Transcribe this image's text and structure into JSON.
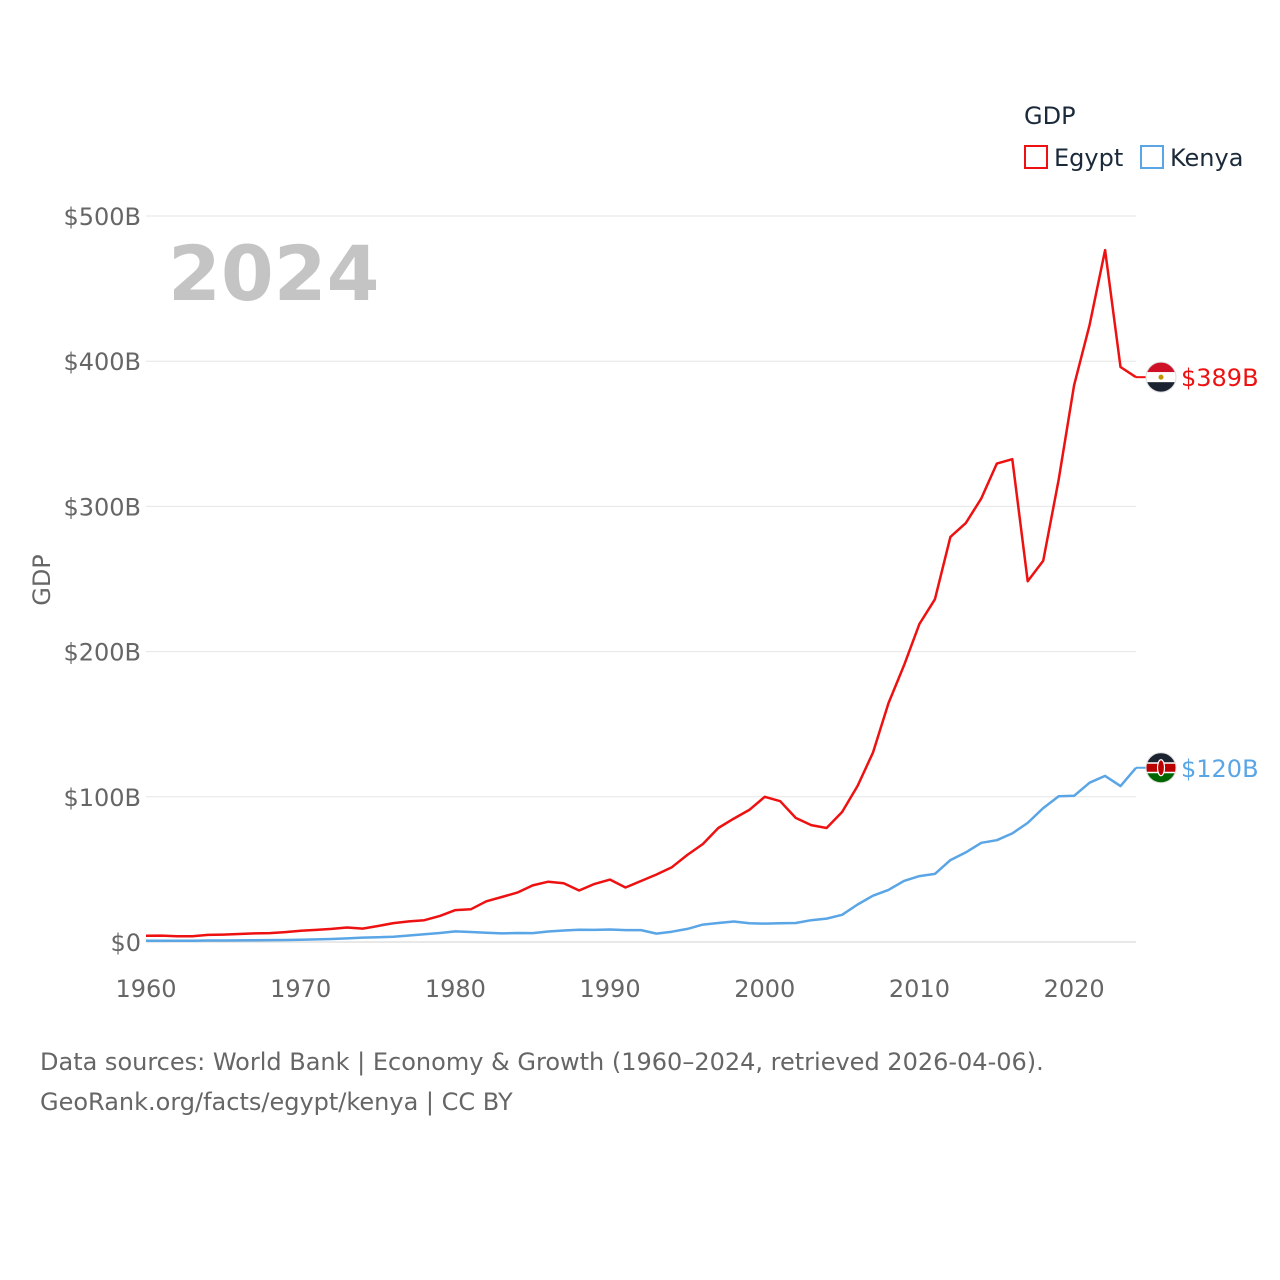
{
  "chart_data": {
    "type": "line",
    "title": "",
    "year_label": "2024",
    "xlabel": "",
    "ylabel": "GDP",
    "ylim": [
      0,
      500
    ],
    "xlim": [
      1960,
      2024
    ],
    "y_ticks": [
      {
        "value": 0,
        "label": "$0"
      },
      {
        "value": 100,
        "label": "$100B"
      },
      {
        "value": 200,
        "label": "$200B"
      },
      {
        "value": 300,
        "label": "$300B"
      },
      {
        "value": 400,
        "label": "$400B"
      },
      {
        "value": 500,
        "label": "$500B"
      }
    ],
    "x_ticks": [
      {
        "value": 1960,
        "label": "1960"
      },
      {
        "value": 1970,
        "label": "1970"
      },
      {
        "value": 1980,
        "label": "1980"
      },
      {
        "value": 1990,
        "label": "1990"
      },
      {
        "value": 2000,
        "label": "2000"
      },
      {
        "value": 2010,
        "label": "2010"
      },
      {
        "value": 2020,
        "label": "2020"
      }
    ],
    "legend": {
      "title": "GDP",
      "position": "top-right"
    },
    "grid": true,
    "units": "billions USD",
    "series": [
      {
        "name": "Egypt",
        "color": "#ee1111",
        "end_label": "$389B",
        "flag": "egypt-flag",
        "values": [
          [
            1960,
            4.3
          ],
          [
            1961,
            4.4
          ],
          [
            1962,
            4.0
          ],
          [
            1963,
            4.0
          ],
          [
            1964,
            4.9
          ],
          [
            1965,
            5.1
          ],
          [
            1966,
            5.5
          ],
          [
            1967,
            5.9
          ],
          [
            1968,
            6.1
          ],
          [
            1969,
            6.8
          ],
          [
            1970,
            7.7
          ],
          [
            1971,
            8.3
          ],
          [
            1972,
            9.0
          ],
          [
            1973,
            10.0
          ],
          [
            1974,
            9.2
          ],
          [
            1975,
            11.0
          ],
          [
            1976,
            13.0
          ],
          [
            1977,
            14.2
          ],
          [
            1978,
            15.0
          ],
          [
            1979,
            18.0
          ],
          [
            1980,
            22.0
          ],
          [
            1981,
            22.5
          ],
          [
            1982,
            28.0
          ],
          [
            1983,
            31.0
          ],
          [
            1984,
            34.0
          ],
          [
            1985,
            39.0
          ],
          [
            1986,
            41.5
          ],
          [
            1987,
            40.5
          ],
          [
            1988,
            35.5
          ],
          [
            1989,
            40.0
          ],
          [
            1990,
            43.0
          ],
          [
            1991,
            37.5
          ],
          [
            1992,
            42.0
          ],
          [
            1993,
            46.5
          ],
          [
            1994,
            51.5
          ],
          [
            1995,
            60.0
          ],
          [
            1996,
            67.5
          ],
          [
            1997,
            78.5
          ],
          [
            1998,
            85.0
          ],
          [
            1999,
            91.0
          ],
          [
            2000,
            100.0
          ],
          [
            2001,
            97.0
          ],
          [
            2002,
            85.5
          ],
          [
            2003,
            80.5
          ],
          [
            2004,
            78.5
          ],
          [
            2005,
            89.5
          ],
          [
            2006,
            107.5
          ],
          [
            2007,
            130.5
          ],
          [
            2008,
            164.5
          ],
          [
            2009,
            190.5
          ],
          [
            2010,
            219.0
          ],
          [
            2011,
            236.0
          ],
          [
            2012,
            279.0
          ],
          [
            2013,
            288.5
          ],
          [
            2014,
            305.5
          ],
          [
            2015,
            329.5
          ],
          [
            2016,
            332.5
          ],
          [
            2017,
            248.5
          ],
          [
            2018,
            262.5
          ],
          [
            2019,
            318.5
          ],
          [
            2020,
            383.5
          ],
          [
            2021,
            425.0
          ],
          [
            2022,
            476.5
          ],
          [
            2023,
            396.0
          ],
          [
            2024,
            389.0
          ]
        ]
      },
      {
        "name": "Kenya",
        "color": "#5aa5e6",
        "end_label": "$120B",
        "flag": "kenya-flag",
        "values": [
          [
            1960,
            0.8
          ],
          [
            1961,
            0.8
          ],
          [
            1962,
            0.9
          ],
          [
            1963,
            0.9
          ],
          [
            1964,
            1.0
          ],
          [
            1965,
            1.0
          ],
          [
            1966,
            1.1
          ],
          [
            1967,
            1.2
          ],
          [
            1968,
            1.3
          ],
          [
            1969,
            1.4
          ],
          [
            1970,
            1.6
          ],
          [
            1971,
            1.8
          ],
          [
            1972,
            2.1
          ],
          [
            1973,
            2.5
          ],
          [
            1974,
            3.0
          ],
          [
            1975,
            3.3
          ],
          [
            1976,
            3.6
          ],
          [
            1977,
            4.5
          ],
          [
            1978,
            5.3
          ],
          [
            1979,
            6.2
          ],
          [
            1980,
            7.3
          ],
          [
            1981,
            6.9
          ],
          [
            1982,
            6.4
          ],
          [
            1983,
            5.9
          ],
          [
            1984,
            6.2
          ],
          [
            1985,
            6.1
          ],
          [
            1986,
            7.2
          ],
          [
            1987,
            7.9
          ],
          [
            1988,
            8.4
          ],
          [
            1989,
            8.3
          ],
          [
            1990,
            8.6
          ],
          [
            1991,
            8.2
          ],
          [
            1992,
            8.2
          ],
          [
            1993,
            5.8
          ],
          [
            1994,
            7.1
          ],
          [
            1995,
            9.0
          ],
          [
            1996,
            12.0
          ],
          [
            1997,
            13.1
          ],
          [
            1998,
            14.1
          ],
          [
            1999,
            12.9
          ],
          [
            2000,
            12.7
          ],
          [
            2001,
            12.9
          ],
          [
            2002,
            13.1
          ],
          [
            2003,
            15.0
          ],
          [
            2004,
            16.1
          ],
          [
            2005,
            18.7
          ],
          [
            2006,
            25.8
          ],
          [
            2007,
            31.9
          ],
          [
            2008,
            35.9
          ],
          [
            2009,
            42.1
          ],
          [
            2010,
            45.4
          ],
          [
            2011,
            46.9
          ],
          [
            2012,
            56.4
          ],
          [
            2013,
            61.7
          ],
          [
            2014,
            68.3
          ],
          [
            2015,
            70.1
          ],
          [
            2016,
            74.8
          ],
          [
            2017,
            82.0
          ],
          [
            2018,
            92.2
          ],
          [
            2019,
            100.4
          ],
          [
            2020,
            100.7
          ],
          [
            2021,
            109.7
          ],
          [
            2022,
            114.4
          ],
          [
            2023,
            107.4
          ],
          [
            2024,
            120.0
          ]
        ]
      }
    ]
  },
  "footer": {
    "line1": "Data sources: World Bank | Economy & Growth (1960–2024, retrieved 2026-04-06).",
    "line2": "GeoRank.org/facts/egypt/kenya | CC BY"
  }
}
